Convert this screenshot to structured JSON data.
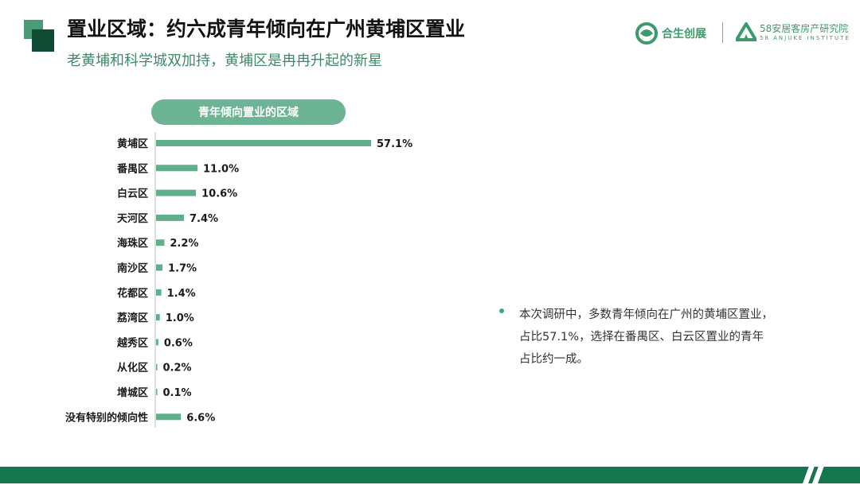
{
  "header": {
    "title": "置业区域：约六成青年倾向在广州黄埔区置业",
    "subtitle": "老黄埔和科学城双加持，黄埔区是冉冉升起的新星"
  },
  "logos": {
    "left_logo_text": "合生创展",
    "right_logo_cn": "58安居客房产研究院",
    "right_logo_en": "58 ANJUKE INSTITUTE"
  },
  "chart_data": {
    "type": "bar",
    "orientation": "horizontal",
    "title": "青年倾向置业的区域",
    "categories": [
      "黄埔区",
      "番禺区",
      "白云区",
      "天河区",
      "海珠区",
      "南沙区",
      "花都区",
      "荔湾区",
      "越秀区",
      "从化区",
      "增城区",
      "没有特别的倾向性"
    ],
    "values": [
      57.1,
      11.0,
      10.6,
      7.4,
      2.2,
      1.7,
      1.4,
      1.0,
      0.6,
      0.2,
      0.1,
      6.6
    ],
    "value_labels": [
      "57.1%",
      "11.0%",
      "10.6%",
      "7.4%",
      "2.2%",
      "1.7%",
      "1.4%",
      "1.0%",
      "0.6%",
      "0.2%",
      "0.1%",
      "6.6%"
    ],
    "unit": "%",
    "bar_color": "#5fae8c",
    "grid": false,
    "legend": "none"
  },
  "note": {
    "text": "本次调研中，多数青年倾向在广州的黄埔区置业，占比57.1%，选择在番禺区、白云区置业的青年占比约一成。"
  },
  "colors": {
    "accent_dark": "#0f4a34",
    "accent": "#16764f",
    "accent_light": "#6db494"
  }
}
